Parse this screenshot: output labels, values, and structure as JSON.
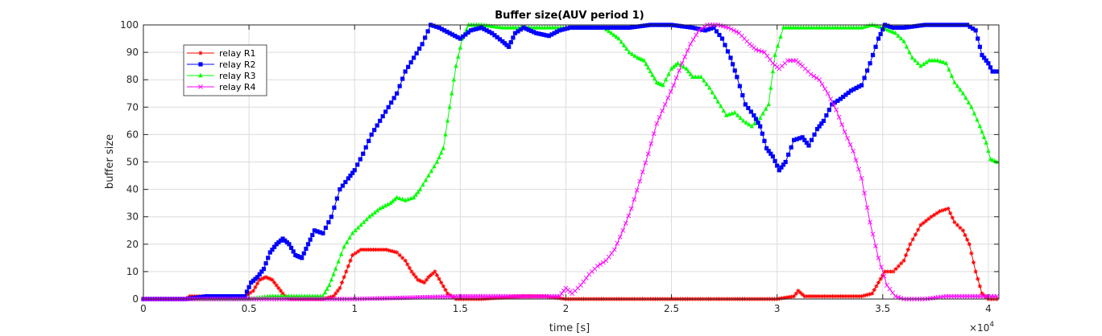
{
  "chart_data": {
    "type": "line",
    "title": "Buffer size(AUV period 1)",
    "xlabel": "time [s]",
    "ylabel": "buffer size",
    "x_exponent_label": "×10",
    "x_exponent_power": "4",
    "xlim": [
      0,
      40500
    ],
    "ylim": [
      0,
      100
    ],
    "xticks": [
      0,
      5000,
      10000,
      15000,
      20000,
      25000,
      30000,
      35000,
      40000
    ],
    "xtick_labels": [
      "0",
      "0.5",
      "1",
      "1.5",
      "2",
      "2.5",
      "3",
      "3.5",
      "4"
    ],
    "yticks": [
      0,
      10,
      20,
      30,
      40,
      50,
      60,
      70,
      80,
      90,
      100
    ],
    "ytick_labels": [
      "0",
      "10",
      "20",
      "30",
      "40",
      "50",
      "60",
      "70",
      "80",
      "90",
      "100"
    ],
    "grid": true,
    "legend_position": "top-left",
    "series": [
      {
        "name": "relay R1",
        "color": "#ff0000",
        "marker": "star",
        "points": [
          [
            0,
            0
          ],
          [
            2000,
            0
          ],
          [
            2200,
            1
          ],
          [
            3000,
            1
          ],
          [
            4000,
            1
          ],
          [
            4800,
            1
          ],
          [
            5200,
            3
          ],
          [
            5500,
            7
          ],
          [
            5800,
            8
          ],
          [
            6100,
            7
          ],
          [
            6400,
            4
          ],
          [
            6700,
            1
          ],
          [
            7000,
            0
          ],
          [
            8500,
            0
          ],
          [
            9000,
            1
          ],
          [
            9300,
            4
          ],
          [
            9600,
            10
          ],
          [
            9900,
            16
          ],
          [
            10300,
            18
          ],
          [
            11000,
            18
          ],
          [
            11500,
            18
          ],
          [
            12000,
            17
          ],
          [
            12400,
            14
          ],
          [
            12700,
            10
          ],
          [
            13000,
            7
          ],
          [
            13300,
            6
          ],
          [
            13500,
            8
          ],
          [
            13800,
            10
          ],
          [
            14100,
            6
          ],
          [
            14400,
            2
          ],
          [
            14800,
            0
          ],
          [
            16000,
            0
          ],
          [
            18000,
            1
          ],
          [
            19000,
            1
          ],
          [
            20000,
            0
          ],
          [
            23000,
            0
          ],
          [
            24000,
            0
          ],
          [
            26000,
            0
          ],
          [
            27000,
            0
          ],
          [
            28000,
            0
          ],
          [
            30000,
            0
          ],
          [
            30800,
            1
          ],
          [
            31000,
            3
          ],
          [
            31300,
            1
          ],
          [
            32000,
            1
          ],
          [
            33000,
            1
          ],
          [
            34000,
            1
          ],
          [
            34500,
            2
          ],
          [
            34800,
            6
          ],
          [
            35100,
            10
          ],
          [
            35500,
            10
          ],
          [
            36000,
            14
          ],
          [
            36300,
            20
          ],
          [
            36800,
            27
          ],
          [
            37300,
            30
          ],
          [
            37700,
            32
          ],
          [
            38100,
            33
          ],
          [
            38400,
            28
          ],
          [
            38800,
            25
          ],
          [
            39100,
            20
          ],
          [
            39400,
            10
          ],
          [
            39700,
            2
          ],
          [
            40000,
            0
          ],
          [
            40400,
            0
          ]
        ]
      },
      {
        "name": "relay R2",
        "color": "#0000ff",
        "marker": "square",
        "points": [
          [
            0,
            0
          ],
          [
            2000,
            0
          ],
          [
            3000,
            1
          ],
          [
            4000,
            1
          ],
          [
            4800,
            1
          ],
          [
            5100,
            6
          ],
          [
            5400,
            8
          ],
          [
            5700,
            11
          ],
          [
            6000,
            17
          ],
          [
            6300,
            20
          ],
          [
            6600,
            22
          ],
          [
            6900,
            20
          ],
          [
            7200,
            16
          ],
          [
            7500,
            15
          ],
          [
            7800,
            20
          ],
          [
            8100,
            25
          ],
          [
            8500,
            24
          ],
          [
            8900,
            30
          ],
          [
            9300,
            40
          ],
          [
            9700,
            44
          ],
          [
            10000,
            47
          ],
          [
            10400,
            53
          ],
          [
            10800,
            60
          ],
          [
            11200,
            65
          ],
          [
            11600,
            70
          ],
          [
            12000,
            75
          ],
          [
            12400,
            83
          ],
          [
            12800,
            88
          ],
          [
            13200,
            93
          ],
          [
            13600,
            100
          ],
          [
            14000,
            99
          ],
          [
            14500,
            97
          ],
          [
            15000,
            95
          ],
          [
            15500,
            98
          ],
          [
            16000,
            99
          ],
          [
            16500,
            97
          ],
          [
            17000,
            94
          ],
          [
            17300,
            92
          ],
          [
            17600,
            97
          ],
          [
            18000,
            99
          ],
          [
            18600,
            97
          ],
          [
            19200,
            96
          ],
          [
            19700,
            98
          ],
          [
            20200,
            99
          ],
          [
            21000,
            99
          ],
          [
            22000,
            99
          ],
          [
            23000,
            99
          ],
          [
            24000,
            100
          ],
          [
            25000,
            100
          ],
          [
            26000,
            99
          ],
          [
            26600,
            98
          ],
          [
            27000,
            99
          ],
          [
            27400,
            95
          ],
          [
            27800,
            88
          ],
          [
            28100,
            81
          ],
          [
            28500,
            71
          ],
          [
            28900,
            67
          ],
          [
            29200,
            63
          ],
          [
            29500,
            55
          ],
          [
            29800,
            52
          ],
          [
            30100,
            47
          ],
          [
            30400,
            50
          ],
          [
            30800,
            58
          ],
          [
            31200,
            59
          ],
          [
            31500,
            56
          ],
          [
            31900,
            62
          ],
          [
            32200,
            65
          ],
          [
            32600,
            71
          ],
          [
            33000,
            73
          ],
          [
            33500,
            76
          ],
          [
            34000,
            78
          ],
          [
            34400,
            86
          ],
          [
            34800,
            95
          ],
          [
            35100,
            100
          ],
          [
            35500,
            99
          ],
          [
            36000,
            99
          ],
          [
            37000,
            100
          ],
          [
            38000,
            100
          ],
          [
            38500,
            100
          ],
          [
            39000,
            100
          ],
          [
            39400,
            98
          ],
          [
            39700,
            89
          ],
          [
            40000,
            86
          ],
          [
            40200,
            83
          ],
          [
            40400,
            83
          ]
        ]
      },
      {
        "name": "relay R3",
        "color": "#00ff00",
        "marker": "triangle",
        "points": [
          [
            0,
            0
          ],
          [
            2000,
            0
          ],
          [
            4000,
            0
          ],
          [
            5000,
            0
          ],
          [
            6000,
            1
          ],
          [
            7000,
            1
          ],
          [
            8000,
            1
          ],
          [
            8500,
            1
          ],
          [
            8800,
            5
          ],
          [
            9100,
            11
          ],
          [
            9500,
            19
          ],
          [
            9900,
            24
          ],
          [
            10300,
            27
          ],
          [
            10700,
            30
          ],
          [
            11200,
            33
          ],
          [
            11700,
            35
          ],
          [
            12000,
            37
          ],
          [
            12400,
            36
          ],
          [
            12800,
            37
          ],
          [
            13100,
            40
          ],
          [
            13500,
            45
          ],
          [
            13900,
            50
          ],
          [
            14200,
            55
          ],
          [
            14500,
            70
          ],
          [
            14800,
            85
          ],
          [
            15100,
            95
          ],
          [
            15400,
            100
          ],
          [
            16000,
            100
          ],
          [
            17000,
            99
          ],
          [
            18000,
            99
          ],
          [
            19000,
            99
          ],
          [
            20000,
            99
          ],
          [
            21000,
            99
          ],
          [
            21800,
            99
          ],
          [
            22500,
            95
          ],
          [
            23000,
            90
          ],
          [
            23400,
            88
          ],
          [
            23700,
            87
          ],
          [
            24000,
            83
          ],
          [
            24300,
            79
          ],
          [
            24600,
            78
          ],
          [
            25000,
            84
          ],
          [
            25300,
            86
          ],
          [
            25700,
            84
          ],
          [
            26000,
            81
          ],
          [
            26400,
            81
          ],
          [
            26800,
            77
          ],
          [
            27200,
            72
          ],
          [
            27600,
            67
          ],
          [
            28000,
            68
          ],
          [
            28400,
            65
          ],
          [
            28800,
            63
          ],
          [
            29200,
            66
          ],
          [
            29600,
            71
          ],
          [
            29900,
            89
          ],
          [
            30300,
            99
          ],
          [
            31000,
            99
          ],
          [
            32000,
            99
          ],
          [
            33000,
            99
          ],
          [
            34000,
            99
          ],
          [
            34500,
            100
          ],
          [
            35000,
            99
          ],
          [
            35600,
            97
          ],
          [
            36000,
            94
          ],
          [
            36400,
            88
          ],
          [
            36800,
            85
          ],
          [
            37200,
            87
          ],
          [
            37600,
            87
          ],
          [
            38000,
            86
          ],
          [
            38400,
            79
          ],
          [
            38800,
            75
          ],
          [
            39200,
            70
          ],
          [
            39600,
            63
          ],
          [
            39900,
            57
          ],
          [
            40100,
            51
          ],
          [
            40400,
            50
          ]
        ]
      },
      {
        "name": "relay R4",
        "color": "#ff00ff",
        "marker": "x",
        "points": [
          [
            0,
            0
          ],
          [
            5000,
            0
          ],
          [
            10000,
            0
          ],
          [
            15000,
            1
          ],
          [
            18000,
            1
          ],
          [
            19700,
            1
          ],
          [
            20000,
            4
          ],
          [
            20300,
            2
          ],
          [
            20700,
            5
          ],
          [
            21100,
            9
          ],
          [
            21500,
            12
          ],
          [
            21900,
            14
          ],
          [
            22300,
            18
          ],
          [
            22700,
            25
          ],
          [
            23100,
            33
          ],
          [
            23500,
            43
          ],
          [
            23900,
            53
          ],
          [
            24300,
            64
          ],
          [
            24700,
            71
          ],
          [
            25100,
            78
          ],
          [
            25500,
            86
          ],
          [
            25900,
            93
          ],
          [
            26300,
            98
          ],
          [
            26700,
            100
          ],
          [
            27200,
            100
          ],
          [
            27700,
            99
          ],
          [
            28200,
            97
          ],
          [
            28700,
            93
          ],
          [
            29000,
            91
          ],
          [
            29400,
            90
          ],
          [
            29800,
            86
          ],
          [
            30100,
            84
          ],
          [
            30500,
            87
          ],
          [
            30900,
            87
          ],
          [
            31200,
            85
          ],
          [
            31600,
            82
          ],
          [
            32000,
            80
          ],
          [
            32400,
            75
          ],
          [
            32800,
            69
          ],
          [
            33200,
            61
          ],
          [
            33600,
            54
          ],
          [
            34000,
            44
          ],
          [
            34400,
            28
          ],
          [
            34800,
            15
          ],
          [
            35200,
            5
          ],
          [
            35600,
            1
          ],
          [
            36000,
            0
          ],
          [
            37000,
            0
          ],
          [
            38000,
            1
          ],
          [
            39000,
            1
          ],
          [
            40000,
            1
          ],
          [
            40400,
            1
          ]
        ]
      }
    ]
  }
}
